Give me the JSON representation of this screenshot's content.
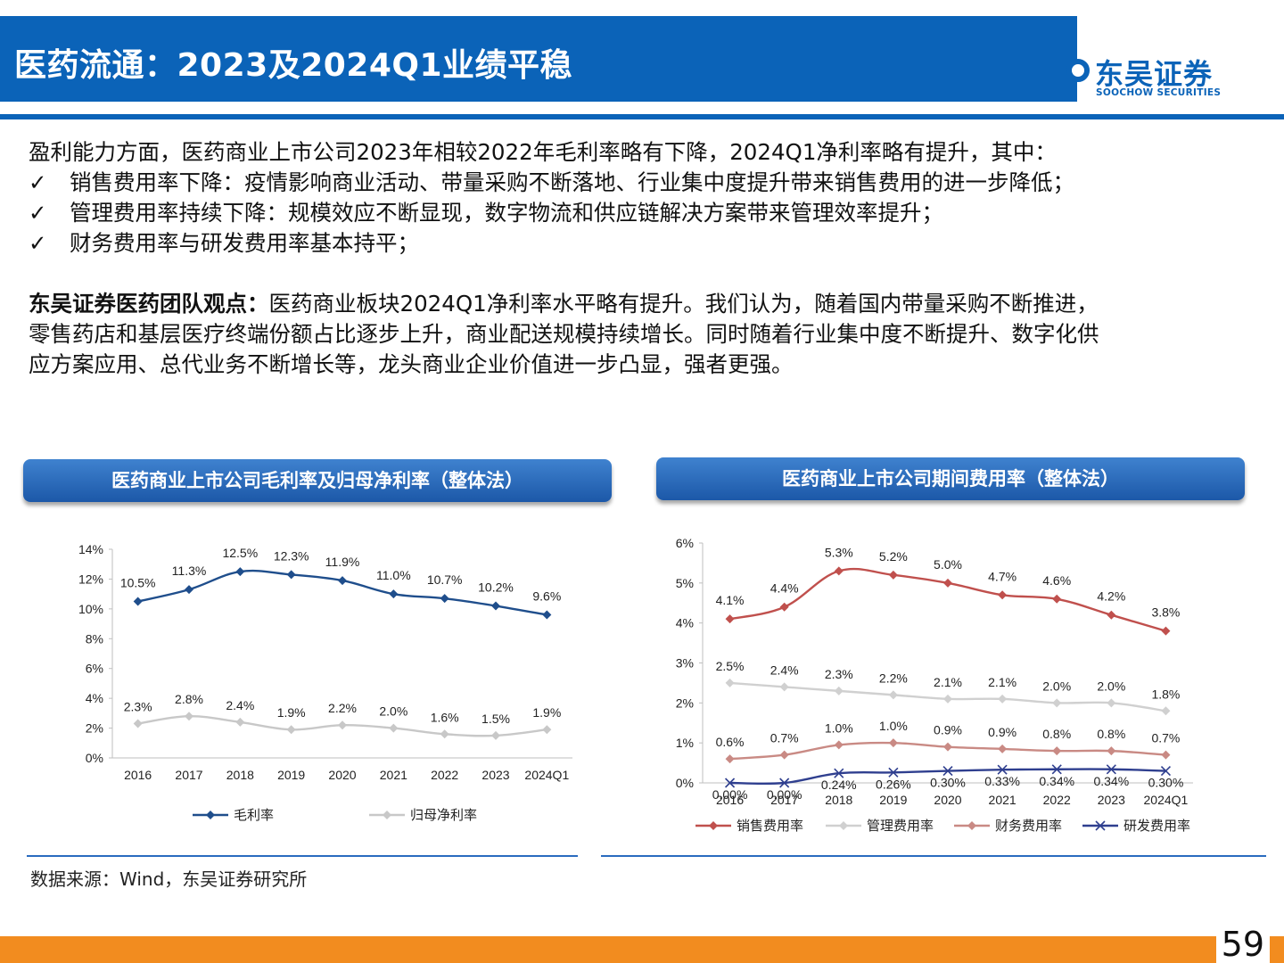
{
  "header": {
    "title": "医药流通：2023及2024Q1业绩平稳",
    "logo_cn": "东吴证券",
    "logo_en": "SOOCHOW SECURITIES"
  },
  "body": {
    "intro": "盈利能力方面，医药商业上市公司2023年相较2022年毛利率略有下降，2024Q1净利率略有提升，其中：",
    "check_mark": "✓",
    "bullets": [
      "销售费用率下降：疫情影响商业活动、带量采购不断落地、行业集中度提升带来销售费用的进一步降低；",
      "管理费用率持续下降：规模效应不断显现，数字物流和供应链解决方案带来管理效率提升；",
      "财务费用率与研发费用率基本持平；"
    ],
    "view_label": "东吴证券医药团队观点：",
    "view_line1": "医药商业板块2024Q1净利率水平略有提升。我们认为，随着国内带量采购不断推进，",
    "view_line2": "零售药店和基层医疗终端份额占比逐步上升，商业配送规模持续增长。同时随着行业集中度不断提升、数字化供",
    "view_line3": "应方案应用、总代业务不断增长等，龙头商业企业价值进一步凸显，强者更强。"
  },
  "panels": {
    "left_title": "医药商业上市公司毛利率及归母净利率（整体法）",
    "right_title": "医药商业上市公司期间费用率（整体法）"
  },
  "chart_data": [
    {
      "type": "line",
      "title": "医药商业上市公司毛利率及归母净利率（整体法）",
      "x": [
        "2016",
        "2017",
        "2018",
        "2019",
        "2020",
        "2021",
        "2022",
        "2023",
        "2024Q1"
      ],
      "ylim": [
        0,
        14
      ],
      "yticks": [
        "0%",
        "2%",
        "4%",
        "6%",
        "8%",
        "10%",
        "12%",
        "14%"
      ],
      "legend_position": "bottom",
      "series": [
        {
          "name": "毛利率",
          "color": "#1f4e8c",
          "marker": "diamond",
          "values": [
            10.5,
            11.3,
            12.5,
            12.3,
            11.9,
            11.0,
            10.7,
            10.2,
            9.6
          ],
          "labels": [
            "10.5%",
            "11.3%",
            "12.5%",
            "12.3%",
            "11.9%",
            "11.0%",
            "10.7%",
            "10.2%",
            "9.6%"
          ]
        },
        {
          "name": "归母净利率",
          "color": "#c8c8c8",
          "marker": "diamond",
          "values": [
            2.3,
            2.8,
            2.4,
            1.9,
            2.2,
            2.0,
            1.6,
            1.5,
            1.9
          ],
          "labels": [
            "2.3%",
            "2.8%",
            "2.4%",
            "1.9%",
            "2.2%",
            "2.0%",
            "1.6%",
            "1.5%",
            "1.9%"
          ]
        }
      ]
    },
    {
      "type": "line",
      "title": "医药商业上市公司期间费用率（整体法）",
      "x": [
        "2016",
        "2017",
        "2018",
        "2019",
        "2020",
        "2021",
        "2022",
        "2023",
        "2024Q1"
      ],
      "ylim": [
        0,
        6
      ],
      "yticks": [
        "0%",
        "1%",
        "2%",
        "3%",
        "4%",
        "5%",
        "6%"
      ],
      "legend_position": "bottom",
      "series": [
        {
          "name": "销售费用率",
          "color": "#c0504d",
          "marker": "diamond",
          "values": [
            4.1,
            4.4,
            5.3,
            5.2,
            5.0,
            4.7,
            4.6,
            4.2,
            3.8
          ],
          "labels": [
            "4.1%",
            "4.4%",
            "5.3%",
            "5.2%",
            "5.0%",
            "4.7%",
            "4.6%",
            "4.2%",
            "3.8%"
          ]
        },
        {
          "name": "管理费用率",
          "color": "#d0d0d0",
          "marker": "diamond",
          "values": [
            2.5,
            2.4,
            2.3,
            2.2,
            2.1,
            2.1,
            2.0,
            2.0,
            1.8
          ],
          "labels": [
            "2.5%",
            "2.4%",
            "2.3%",
            "2.2%",
            "2.1%",
            "2.1%",
            "2.0%",
            "2.0%",
            "1.8%"
          ]
        },
        {
          "name": "财务费用率",
          "color": "#c98a84",
          "marker": "diamond",
          "values": [
            0.6,
            0.7,
            0.95,
            1.0,
            0.9,
            0.85,
            0.8,
            0.8,
            0.7
          ],
          "labels": [
            "0.6%",
            "0.7%",
            "1.0%",
            "1.0%",
            "0.9%",
            "0.9%",
            "0.8%",
            "0.8%",
            "0.7%"
          ]
        },
        {
          "name": "研发费用率",
          "color": "#2f3f8f",
          "marker": "x",
          "values": [
            0.0,
            0.0,
            0.24,
            0.26,
            0.3,
            0.33,
            0.34,
            0.34,
            0.3
          ],
          "labels": [
            "0.00%",
            "0.00%",
            "0.24%",
            "0.26%",
            "0.30%",
            "0.33%",
            "0.34%",
            "0.34%",
            "0.30%"
          ]
        }
      ]
    }
  ],
  "source": "数据来源：Wind，东吴证券研究所",
  "page_number": "59"
}
